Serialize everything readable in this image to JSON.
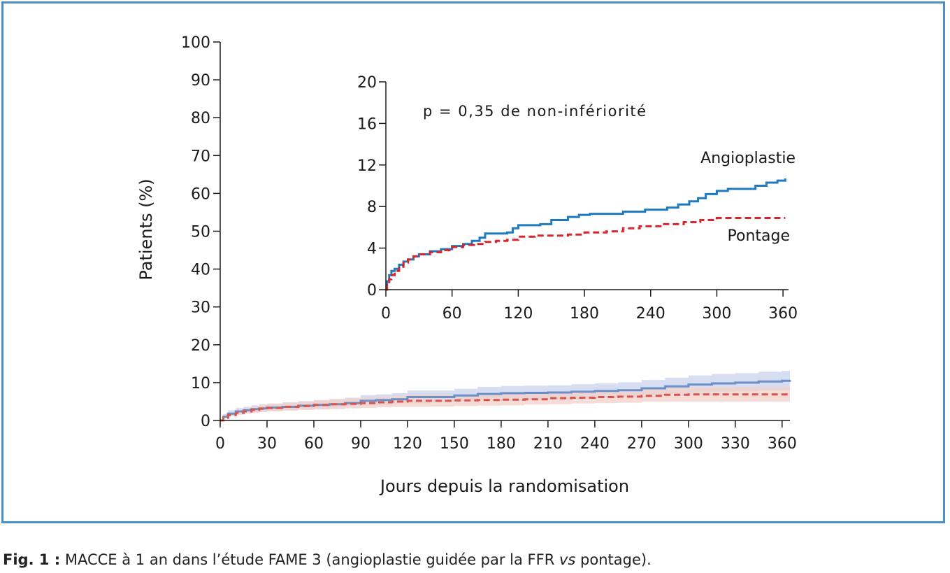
{
  "chart_data": [
    {
      "type": "line",
      "xlabel": "Jours depuis la randomisation",
      "ylabel": "Patients (%)",
      "xlim": [
        0,
        365
      ],
      "ylim": [
        0,
        100
      ],
      "xticks": [
        0,
        30,
        60,
        90,
        120,
        150,
        180,
        210,
        240,
        270,
        300,
        330,
        360
      ],
      "yticks": [
        0,
        10,
        20,
        30,
        40,
        50,
        60,
        70,
        80,
        90,
        100
      ],
      "grid": false,
      "series": [
        {
          "name": "Angioplastie",
          "color": "#6b8fc9",
          "band_color": "#c9d3ee",
          "x": [
            0,
            2,
            5,
            10,
            15,
            20,
            25,
            30,
            40,
            50,
            60,
            70,
            80,
            90,
            100,
            110,
            120,
            135,
            150,
            165,
            180,
            195,
            210,
            225,
            240,
            255,
            270,
            285,
            300,
            315,
            330,
            345,
            360,
            365
          ],
          "y": [
            0,
            1.0,
            1.8,
            2.4,
            2.7,
            3.0,
            3.2,
            3.4,
            3.6,
            3.9,
            4.1,
            4.3,
            4.6,
            5.2,
            5.4,
            5.6,
            6.2,
            6.2,
            6.6,
            7.0,
            7.2,
            7.3,
            7.4,
            7.6,
            7.8,
            8.0,
            8.5,
            9.0,
            9.5,
            9.8,
            10.0,
            10.3,
            10.5,
            10.7
          ],
          "lower": [
            0,
            0.3,
            0.9,
            1.5,
            1.8,
            2.0,
            2.2,
            2.3,
            2.5,
            2.7,
            2.9,
            3.0,
            3.2,
            3.7,
            3.9,
            4.0,
            4.5,
            4.5,
            4.8,
            5.1,
            5.3,
            5.4,
            5.5,
            5.6,
            5.8,
            5.9,
            6.3,
            6.7,
            7.1,
            7.3,
            7.5,
            7.7,
            7.9,
            8.0
          ],
          "upper": [
            0,
            1.7,
            2.7,
            3.3,
            3.6,
            4.0,
            4.2,
            4.5,
            4.7,
            5.1,
            5.3,
            5.6,
            6.0,
            6.7,
            6.9,
            7.2,
            7.9,
            7.9,
            8.4,
            8.9,
            9.1,
            9.2,
            9.3,
            9.6,
            9.8,
            10.1,
            10.7,
            11.3,
            11.9,
            12.3,
            12.5,
            12.9,
            13.1,
            13.4
          ]
        },
        {
          "name": "Pontage",
          "color": "#d9534f",
          "band_color": "#f3d0c8",
          "dashed": true,
          "x": [
            0,
            2,
            5,
            10,
            15,
            20,
            25,
            30,
            40,
            50,
            60,
            70,
            80,
            90,
            100,
            110,
            120,
            135,
            150,
            165,
            180,
            195,
            210,
            225,
            240,
            255,
            270,
            285,
            300,
            315,
            330,
            345,
            360,
            365
          ],
          "y": [
            0,
            0.7,
            1.4,
            2.0,
            2.4,
            2.8,
            3.1,
            3.3,
            3.6,
            3.8,
            4.1,
            4.3,
            4.4,
            4.6,
            4.8,
            5.0,
            5.2,
            5.2,
            5.3,
            5.4,
            5.5,
            5.6,
            5.9,
            6.0,
            6.2,
            6.3,
            6.5,
            6.8,
            6.9,
            6.9,
            6.9,
            6.9,
            6.9,
            6.9
          ],
          "lower": [
            0,
            0.2,
            0.6,
            1.1,
            1.5,
            1.8,
            2.0,
            2.2,
            2.4,
            2.6,
            2.8,
            2.9,
            3.0,
            3.2,
            3.3,
            3.5,
            3.6,
            3.6,
            3.7,
            3.8,
            3.9,
            4.0,
            4.2,
            4.3,
            4.5,
            4.6,
            4.7,
            5.0,
            5.0,
            5.0,
            5.0,
            5.0,
            5.0,
            5.0
          ],
          "upper": [
            0,
            1.2,
            2.2,
            2.9,
            3.3,
            3.8,
            4.2,
            4.4,
            4.8,
            5.0,
            5.4,
            5.7,
            5.8,
            6.0,
            6.3,
            6.5,
            6.8,
            6.8,
            6.9,
            7.0,
            7.1,
            7.2,
            7.6,
            7.7,
            7.9,
            8.0,
            8.3,
            8.6,
            8.8,
            8.8,
            8.8,
            8.8,
            8.8,
            8.8
          ]
        }
      ]
    },
    {
      "type": "line",
      "inset": true,
      "annotation": "p = 0,35 de non-infériorité",
      "xlim": [
        0,
        365
      ],
      "ylim": [
        0,
        20
      ],
      "xticks": [
        0,
        60,
        120,
        180,
        240,
        300,
        360
      ],
      "yticks": [
        0,
        4,
        8,
        12,
        16,
        20
      ],
      "grid": false,
      "series": [
        {
          "name": "Angioplastie",
          "color": "#1f7bbf",
          "x": [
            0,
            1,
            3,
            5,
            8,
            12,
            16,
            20,
            25,
            30,
            40,
            50,
            60,
            70,
            78,
            85,
            90,
            100,
            110,
            115,
            120,
            140,
            150,
            165,
            175,
            185,
            200,
            215,
            235,
            255,
            265,
            275,
            283,
            290,
            300,
            310,
            320,
            335,
            345,
            355,
            362
          ],
          "y": [
            0,
            0.8,
            1.4,
            1.8,
            2.0,
            2.4,
            2.7,
            2.9,
            3.2,
            3.4,
            3.7,
            3.9,
            4.2,
            4.4,
            4.7,
            5.0,
            5.4,
            5.4,
            5.5,
            5.9,
            6.2,
            6.3,
            6.7,
            7.0,
            7.2,
            7.3,
            7.3,
            7.5,
            7.7,
            7.9,
            8.2,
            8.5,
            8.8,
            9.2,
            9.5,
            9.7,
            9.7,
            10.0,
            10.3,
            10.5,
            10.7
          ]
        },
        {
          "name": "Pontage",
          "color": "#d7262f",
          "dashed": true,
          "x": [
            0,
            1,
            3,
            5,
            8,
            12,
            16,
            20,
            25,
            30,
            40,
            50,
            60,
            70,
            80,
            90,
            100,
            110,
            120,
            135,
            150,
            165,
            180,
            200,
            215,
            230,
            250,
            270,
            285,
            300,
            330,
            362
          ],
          "y": [
            0,
            0.4,
            1.0,
            1.4,
            1.8,
            2.2,
            2.6,
            2.9,
            3.2,
            3.4,
            3.6,
            3.8,
            4.1,
            4.3,
            4.4,
            4.6,
            4.7,
            4.8,
            5.1,
            5.2,
            5.2,
            5.3,
            5.5,
            5.6,
            5.9,
            6.1,
            6.3,
            6.5,
            6.7,
            6.9,
            6.9,
            6.9
          ]
        }
      ]
    }
  ],
  "caption": {
    "fig": "Fig. 1 :",
    "text_a": " MACCE à 1 an dans l’étude FAME 3 (angioplastie guidée par la FFR ",
    "vs": "vs",
    "text_b": " pontage)."
  }
}
